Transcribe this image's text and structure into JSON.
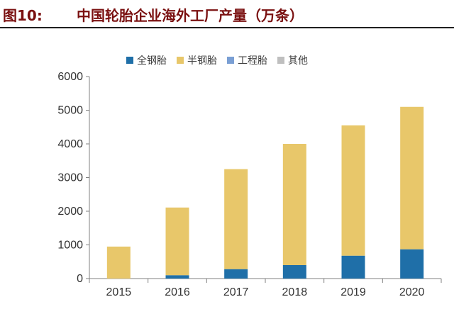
{
  "figure": {
    "label": "图10:",
    "title": "中国轮胎企业海外工厂产量（万条）"
  },
  "chart_data": {
    "type": "bar",
    "stacked": true,
    "categories": [
      "2015",
      "2016",
      "2017",
      "2018",
      "2019",
      "2020"
    ],
    "series": [
      {
        "name": "全钢胎",
        "color": "#1f6fa8",
        "values": [
          0,
          100,
          280,
          400,
          680,
          870
        ]
      },
      {
        "name": "半钢胎",
        "color": "#e8c76a",
        "values": [
          950,
          2010,
          2970,
          3600,
          3870,
          4230
        ]
      },
      {
        "name": "工程胎",
        "color": "#7a9fd4",
        "values": [
          0,
          0,
          0,
          0,
          0,
          0
        ]
      },
      {
        "name": "其他",
        "color": "#bfbfbf",
        "values": [
          0,
          0,
          0,
          0,
          0,
          0
        ]
      }
    ],
    "ylim": [
      0,
      6000
    ],
    "yticks": [
      "0",
      "1000",
      "2000",
      "3000",
      "4000",
      "5000",
      "6000"
    ],
    "grid": false,
    "legend_position": "top-center"
  }
}
